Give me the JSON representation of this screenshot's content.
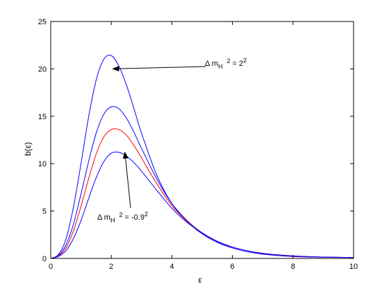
{
  "chart_data": {
    "type": "line",
    "xlabel": "ε",
    "ylabel": "b(ε)",
    "xlim": [
      0,
      10
    ],
    "ylim": [
      0,
      25
    ],
    "xticks": [
      0,
      2,
      4,
      6,
      8,
      10
    ],
    "yticks": [
      0,
      5,
      10,
      15,
      20,
      25
    ],
    "grid": false,
    "series": [
      {
        "color": "#0000ff",
        "x": [
          0,
          0.25,
          0.5,
          0.75,
          1,
          1.25,
          1.5,
          1.75,
          2,
          2.25,
          2.5,
          2.75,
          3,
          3.5,
          4,
          4.5,
          5,
          5.5,
          6,
          6.5,
          7,
          7.5,
          8,
          8.5,
          9,
          9.5,
          10
        ],
        "values": [
          0,
          0.4,
          2.0,
          5.4,
          10.0,
          14.9,
          18.8,
          21.0,
          21.4,
          20.3,
          18.3,
          15.8,
          13.2,
          8.8,
          5.8,
          3.9,
          2.6,
          1.7,
          1.1,
          0.7,
          0.45,
          0.3,
          0.2,
          0.15,
          0.12,
          0.1,
          0.1
        ]
      },
      {
        "color": "#0000ff",
        "x": [
          0,
          0.25,
          0.5,
          0.75,
          1,
          1.25,
          1.5,
          1.75,
          2,
          2.25,
          2.5,
          2.75,
          3,
          3.5,
          4,
          4.5,
          5,
          5.5,
          6,
          6.5,
          7,
          7.5,
          8,
          8.5,
          9,
          9.5,
          10
        ],
        "values": [
          0,
          0.3,
          1.4,
          3.6,
          6.8,
          10.2,
          13.2,
          15.2,
          16.0,
          15.8,
          14.8,
          13.3,
          11.6,
          8.4,
          5.8,
          4.0,
          2.7,
          1.8,
          1.2,
          0.8,
          0.5,
          0.35,
          0.25,
          0.18,
          0.14,
          0.12,
          0.1
        ]
      },
      {
        "color": "#ff0000",
        "x": [
          0,
          0.25,
          0.5,
          0.75,
          1,
          1.25,
          1.5,
          1.75,
          2,
          2.25,
          2.5,
          2.75,
          3,
          3.5,
          4,
          4.5,
          5,
          5.5,
          6,
          6.5,
          7,
          7.5,
          8,
          8.5,
          9,
          9.5,
          10
        ],
        "values": [
          0,
          0.25,
          1.1,
          2.9,
          5.5,
          8.4,
          11.0,
          12.8,
          13.6,
          13.6,
          13.0,
          11.9,
          10.6,
          7.9,
          5.6,
          3.9,
          2.7,
          1.8,
          1.2,
          0.8,
          0.52,
          0.36,
          0.25,
          0.18,
          0.14,
          0.12,
          0.1
        ]
      },
      {
        "color": "#0000ff",
        "x": [
          0,
          0.25,
          0.5,
          0.75,
          1,
          1.25,
          1.5,
          1.75,
          2,
          2.25,
          2.5,
          2.75,
          3,
          3.5,
          4,
          4.5,
          5,
          5.5,
          6,
          6.5,
          7,
          7.5,
          8,
          8.5,
          9,
          9.5,
          10
        ],
        "values": [
          0,
          0.2,
          0.8,
          2.1,
          4.0,
          6.3,
          8.5,
          10.2,
          11.1,
          11.2,
          10.8,
          10.1,
          9.2,
          7.2,
          5.3,
          3.8,
          2.7,
          1.8,
          1.2,
          0.8,
          0.55,
          0.38,
          0.27,
          0.2,
          0.15,
          0.12,
          0.1
        ]
      }
    ],
    "annotations": [
      {
        "text_main": "Δ m",
        "text_sub": "H",
        "text_tail": "2",
        "text_eq": " = 2",
        "text_pow": "2",
        "arrow_to": [
          2.05,
          20.0
        ]
      },
      {
        "text_main": "Δ m",
        "text_sub": "H",
        "text_tail": "2",
        "text_eq": " = -0.9",
        "text_pow": "2",
        "arrow_to": [
          2.45,
          11.2
        ]
      }
    ]
  }
}
